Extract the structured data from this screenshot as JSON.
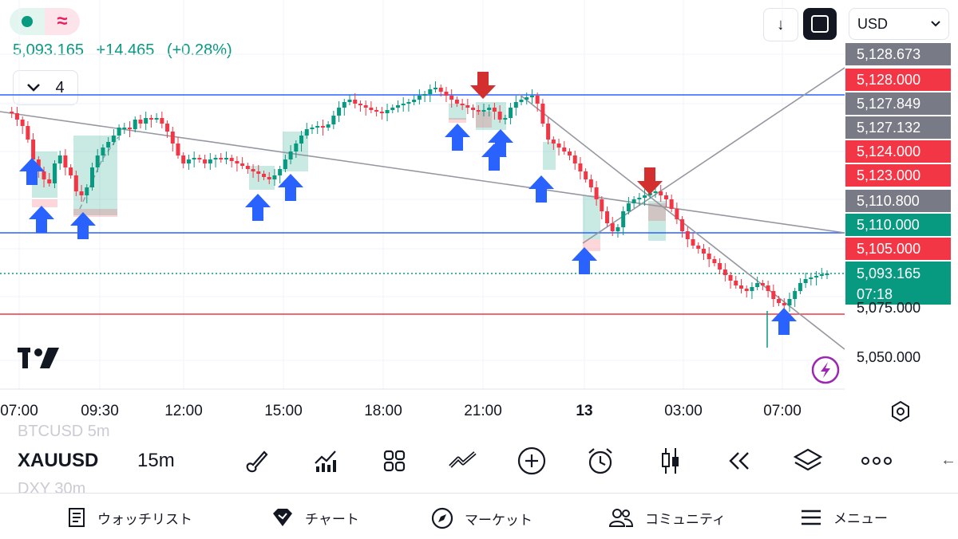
{
  "header": {
    "quote": {
      "price": "5,093.165",
      "change": "+14.465",
      "change_pct": "(+0.28%)"
    },
    "indicator_count": "4",
    "currency": "USD",
    "colors": {
      "up": "#089981",
      "down": "#f23645",
      "line_blue": "#2962ff"
    }
  },
  "price_scale": {
    "labels": [
      {
        "text": "5,128.673",
        "type": "gray"
      },
      {
        "text": "5,128.000",
        "type": "red"
      },
      {
        "text": "5,127.849",
        "type": "gray"
      },
      {
        "text": "5,127.132",
        "type": "gray"
      },
      {
        "text": "5,124.000",
        "type": "red"
      },
      {
        "text": "5,123.000",
        "type": "red"
      },
      {
        "text": "5,110.800",
        "type": "gray"
      },
      {
        "text": "5,110.000",
        "type": "green"
      },
      {
        "text": "5,105.000",
        "type": "red"
      }
    ],
    "current_price": "5,093.165",
    "countdown": "07:18",
    "plain_labels": [
      "5,075.000",
      "5,050.000"
    ]
  },
  "time_axis": [
    "07:00",
    "09:30",
    "12:00",
    "15:00",
    "18:00",
    "21:00",
    "13",
    "03:00",
    "07:00"
  ],
  "toolbar": {
    "ghost_top": "BTCUSD   5m",
    "symbol": "XAUUSD",
    "interval": "15m",
    "ghost_bottom": "DXY   30m",
    "tools": [
      "brush-icon",
      "indicators-icon",
      "widgets-icon",
      "trend-icon",
      "add-icon",
      "alarm-icon",
      "candles-icon",
      "replay-icon",
      "layers-icon",
      "more-icon"
    ]
  },
  "bottom_nav": [
    {
      "label": "ウォッチリスト",
      "icon": "watchlist-icon"
    },
    {
      "label": "チャート",
      "icon": "chart-icon"
    },
    {
      "label": "マーケット",
      "icon": "compass-icon"
    },
    {
      "label": "コミュニティ",
      "icon": "community-icon"
    },
    {
      "label": "メニュー",
      "icon": "menu-icon"
    }
  ]
}
